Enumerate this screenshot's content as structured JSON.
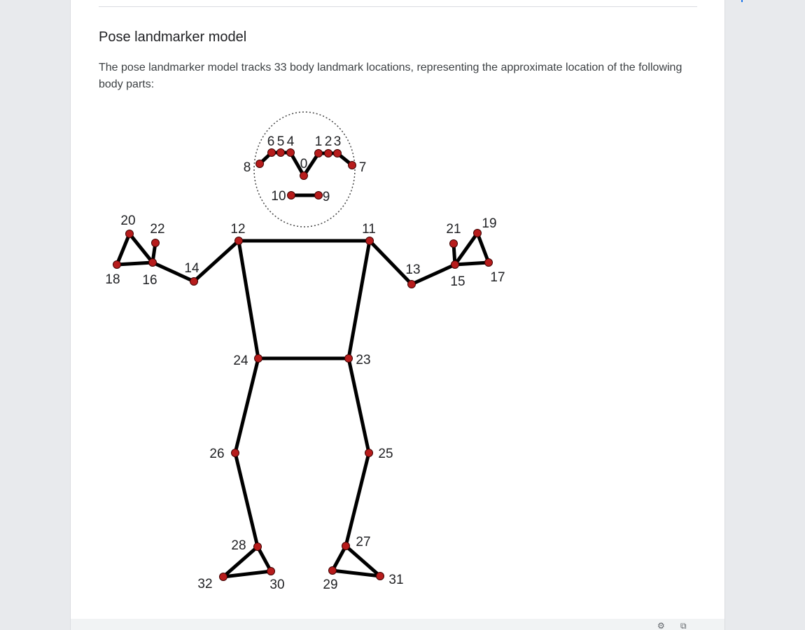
{
  "section": {
    "heading": "Pose landmarker model",
    "description": "The pose landmarker model tracks 33 body landmark locations, representing the approximate location of the following body parts:"
  },
  "diagram": {
    "colors": {
      "joint": "#b71c1c",
      "joint_outline": "#3e0000",
      "bone": "#000000"
    },
    "landmark_labels": [
      {
        "id": 0,
        "text": "0"
      },
      {
        "id": 1,
        "text": "1"
      },
      {
        "id": 2,
        "text": "2"
      },
      {
        "id": 3,
        "text": "3"
      },
      {
        "id": 4,
        "text": "4"
      },
      {
        "id": 5,
        "text": "5"
      },
      {
        "id": 6,
        "text": "6"
      },
      {
        "id": 7,
        "text": "7"
      },
      {
        "id": 8,
        "text": "8"
      },
      {
        "id": 9,
        "text": "9"
      },
      {
        "id": 10,
        "text": "10"
      },
      {
        "id": 11,
        "text": "11"
      },
      {
        "id": 12,
        "text": "12"
      },
      {
        "id": 13,
        "text": "13"
      },
      {
        "id": 14,
        "text": "14"
      },
      {
        "id": 15,
        "text": "15"
      },
      {
        "id": 16,
        "text": "16"
      },
      {
        "id": 17,
        "text": "17"
      },
      {
        "id": 18,
        "text": "18"
      },
      {
        "id": 19,
        "text": "19"
      },
      {
        "id": 20,
        "text": "20"
      },
      {
        "id": 21,
        "text": "21"
      },
      {
        "id": 22,
        "text": "22"
      },
      {
        "id": 23,
        "text": "23"
      },
      {
        "id": 24,
        "text": "24"
      },
      {
        "id": 25,
        "text": "25"
      },
      {
        "id": 26,
        "text": "26"
      },
      {
        "id": 27,
        "text": "27"
      },
      {
        "id": 28,
        "text": "28"
      },
      {
        "id": 29,
        "text": "29"
      },
      {
        "id": 30,
        "text": "30"
      },
      {
        "id": 31,
        "text": "31"
      },
      {
        "id": 32,
        "text": "32"
      }
    ],
    "connections": [
      [
        0,
        4
      ],
      [
        4,
        5
      ],
      [
        5,
        6
      ],
      [
        6,
        8
      ],
      [
        0,
        1
      ],
      [
        1,
        2
      ],
      [
        2,
        3
      ],
      [
        3,
        7
      ],
      [
        9,
        10
      ],
      [
        11,
        12
      ],
      [
        11,
        23
      ],
      [
        12,
        24
      ],
      [
        23,
        24
      ],
      [
        12,
        14
      ],
      [
        14,
        16
      ],
      [
        16,
        18
      ],
      [
        16,
        20
      ],
      [
        18,
        20
      ],
      [
        16,
        22
      ],
      [
        11,
        13
      ],
      [
        13,
        15
      ],
      [
        15,
        17
      ],
      [
        15,
        19
      ],
      [
        17,
        19
      ],
      [
        15,
        21
      ],
      [
        24,
        26
      ],
      [
        26,
        28
      ],
      [
        28,
        30
      ],
      [
        28,
        32
      ],
      [
        30,
        32
      ],
      [
        23,
        25
      ],
      [
        25,
        27
      ],
      [
        27,
        29
      ],
      [
        27,
        31
      ],
      [
        29,
        31
      ]
    ]
  },
  "footer": {
    "icons": [
      "settings-icon",
      "copy-icon"
    ]
  }
}
